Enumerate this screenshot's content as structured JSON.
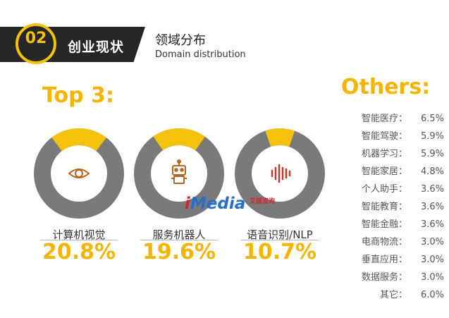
{
  "header": {
    "badge_number": "02",
    "badge_label": "创业现状",
    "title": "领域分布",
    "subtitle": "Domain distribution"
  },
  "top3_title": "Top 3:",
  "others_title": "Others:",
  "watermark": {
    "brand_i": "i",
    "brand_rest": "Media",
    "cn": "艾媒咨询"
  },
  "colors": {
    "accent": "#f4c20d",
    "ring": "#7a7a7a",
    "dark": "#262626",
    "icon": "#b5651d"
  },
  "top3": [
    {
      "label": "计算机视觉",
      "value_text": "20.8%",
      "icon": "eye-icon"
    },
    {
      "label": "服务机器人",
      "value_text": "19.6%",
      "icon": "robot-icon"
    },
    {
      "label": "语音识别/NLP",
      "value_text": "10.7%",
      "icon": "soundwave-icon"
    }
  ],
  "others": [
    {
      "label": "智能医疗：",
      "value": "6.5%"
    },
    {
      "label": "智能驾驶：",
      "value": "5.9%"
    },
    {
      "label": "机器学习：",
      "value": "5.9%"
    },
    {
      "label": "智能家居：",
      "value": "4.8%"
    },
    {
      "label": "个人助手：",
      "value": "3.6%"
    },
    {
      "label": "智能教育：",
      "value": "3.6%"
    },
    {
      "label": "智能金融：",
      "value": "3.6%"
    },
    {
      "label": "电商物流：",
      "value": "3.0%"
    },
    {
      "label": "垂直应用：",
      "value": "3.0%"
    },
    {
      "label": "数据服务：",
      "value": "3.0%"
    },
    {
      "label": "其它：",
      "value": "6.0%"
    }
  ],
  "chart_data": {
    "type": "pie",
    "categories": [
      "计算机视觉",
      "服务机器人",
      "语音识别/NLP",
      "智能医疗",
      "智能驾驶",
      "机器学习",
      "智能家居",
      "个人助手",
      "智能教育",
      "智能金融",
      "电商物流",
      "垂直应用",
      "数据服务",
      "其它"
    ],
    "values": [
      20.8,
      19.6,
      10.7,
      6.5,
      5.9,
      5.9,
      4.8,
      3.6,
      3.6,
      3.6,
      3.0,
      3.0,
      3.0,
      6.0
    ],
    "title": "领域分布",
    "subtitle": "Domain distribution"
  }
}
